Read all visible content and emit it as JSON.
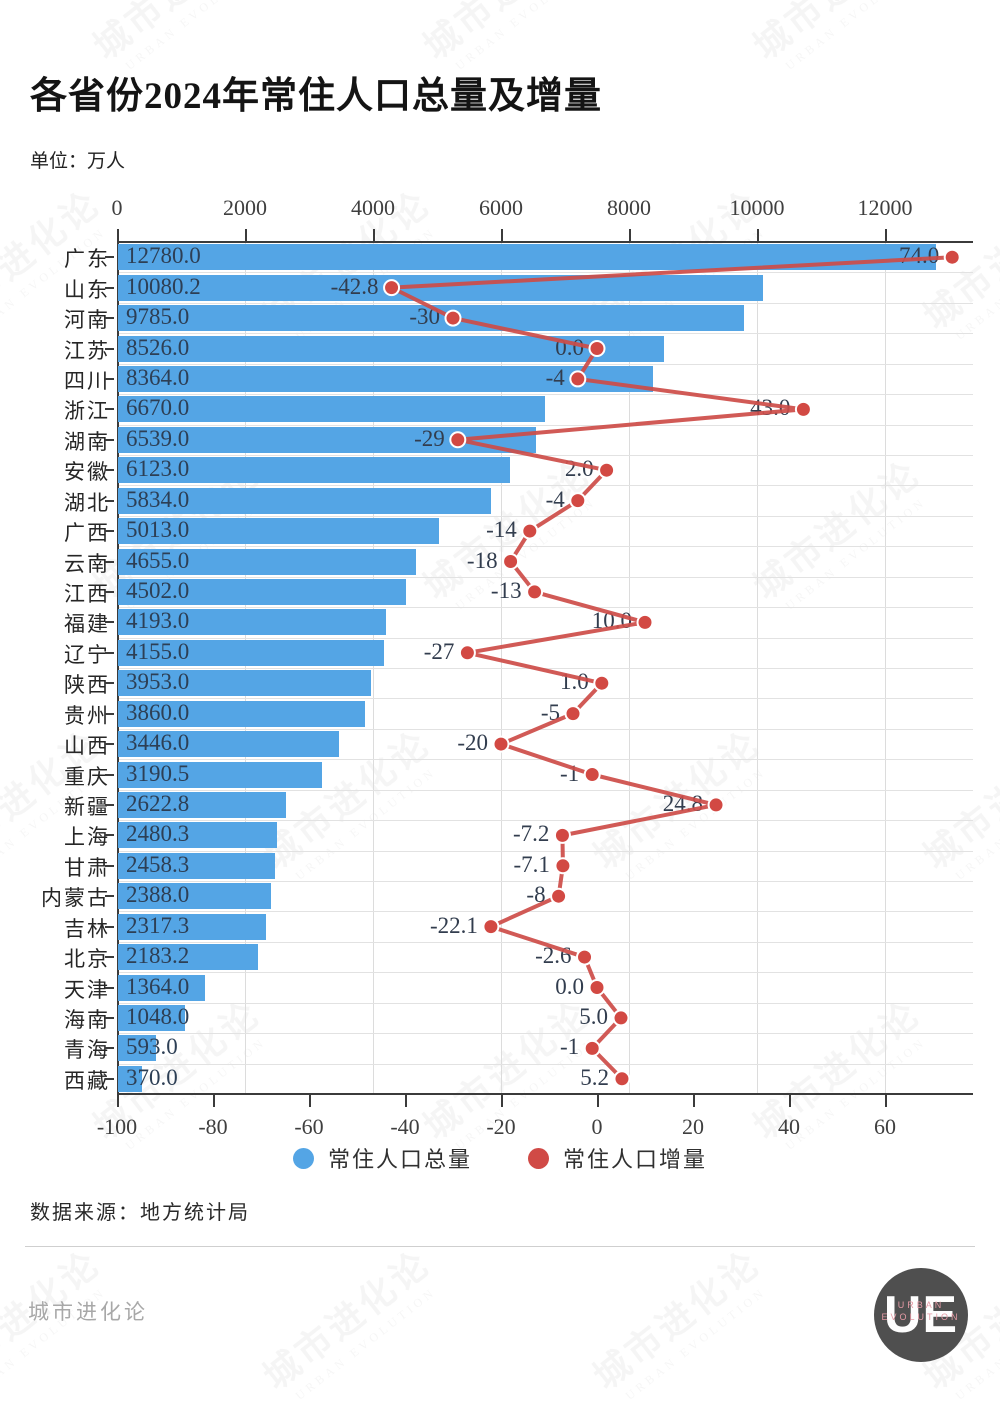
{
  "header": {
    "title": "各省份2024年常住人口总量及增量",
    "subtitle": "单位：万人"
  },
  "legend": [
    {
      "label": "常住人口总量",
      "color": "#54a5e5"
    },
    {
      "label": "常住人口增量",
      "color": "#d04a46"
    }
  ],
  "footer": {
    "source": "数据来源：地方统计局",
    "brand": "城市进化论",
    "logo": {
      "main": "UE",
      "sub1": "URBAN",
      "sub2": "EVOLUTION"
    }
  },
  "watermark": {
    "cn": "城市进化论",
    "en": "URBAN EVOLUTION"
  },
  "colors": {
    "bar": "#54a5e5",
    "line": "#cd4c48",
    "dot_fill": "#d24943",
    "dot_ring": "#ffffff",
    "grid": "#dcdcdc",
    "axis": "#3b3b3b",
    "bar_label": "#2d3f55",
    "delta_label": "#323d4e",
    "tick_label": "#3f3f3f"
  },
  "chart_data": {
    "type": "bar",
    "orientation": "horizontal",
    "title": "各省份2024年常住人口总量及增量",
    "unit": "万人",
    "categories": [
      "广东",
      "山东",
      "河南",
      "江苏",
      "四川",
      "浙江",
      "湖南",
      "安徽",
      "湖北",
      "广西",
      "云南",
      "江西",
      "福建",
      "辽宁",
      "陕西",
      "贵州",
      "山西",
      "重庆",
      "新疆",
      "上海",
      "甘肃",
      "内蒙古",
      "吉林",
      "北京",
      "天津",
      "海南",
      "青海",
      "西藏"
    ],
    "series": [
      {
        "name": "常住人口总量",
        "type": "bar",
        "axis": "top",
        "values": [
          12780.0,
          10080.2,
          9785.0,
          8526.0,
          8364.0,
          6670.0,
          6539.0,
          6123.0,
          5834.0,
          5013.0,
          4655.0,
          4502.0,
          4193.0,
          4155.0,
          3953.0,
          3860.0,
          3446.0,
          3190.5,
          2622.8,
          2480.3,
          2458.3,
          2388.0,
          2317.3,
          2183.2,
          1364.0,
          1048.0,
          593.0,
          370.0
        ],
        "labels": [
          "12780.0",
          "10080.2",
          "9785.0",
          "8526.0",
          "8364.0",
          "6670.0",
          "6539.0",
          "6123.0",
          "5834.0",
          "5013.0",
          "4655.0",
          "4502.0",
          "4193.0",
          "4155.0",
          "3953.0",
          "3860.0",
          "3446.0",
          "3190.5",
          "2622.8",
          "2480.3",
          "2458.3",
          "2388.0",
          "2317.3",
          "2183.2",
          "1364.0",
          "1048.0",
          "593.0",
          "370.0"
        ]
      },
      {
        "name": "常住人口增量",
        "type": "line",
        "axis": "bottom",
        "values": [
          74.0,
          -42.8,
          -30,
          0.0,
          -4,
          43.0,
          -29,
          2.0,
          -4,
          -14,
          -18,
          -13,
          10.0,
          -27,
          1.0,
          -5,
          -20,
          -1,
          24.8,
          -7.2,
          -7.1,
          -8,
          -22.1,
          -2.6,
          0.0,
          5.0,
          -1,
          5.2
        ],
        "labels": [
          "74.0",
          "-42.8",
          "-30",
          "0.0",
          "-4",
          "43.0",
          "-29",
          "2.0",
          "-4",
          "-14",
          "-18",
          "-13",
          "10.0",
          "-27",
          "1.0",
          "-5",
          "-20",
          "-1",
          "24.8",
          "-7.2",
          "-7.1",
          "-8",
          "-22.1",
          "-2.6",
          "0.0",
          "5.0",
          "-1",
          "5.2"
        ]
      }
    ],
    "top_axis": {
      "ticks": [
        0,
        2000,
        4000,
        6000,
        8000,
        10000,
        12000
      ],
      "range": [
        0,
        13375
      ]
    },
    "bottom_axis": {
      "ticks": [
        -100,
        -80,
        -60,
        -40,
        -20,
        0,
        20,
        40,
        60
      ],
      "range": [
        -100,
        78.3
      ]
    },
    "grid": true,
    "legend_position": "bottom"
  }
}
